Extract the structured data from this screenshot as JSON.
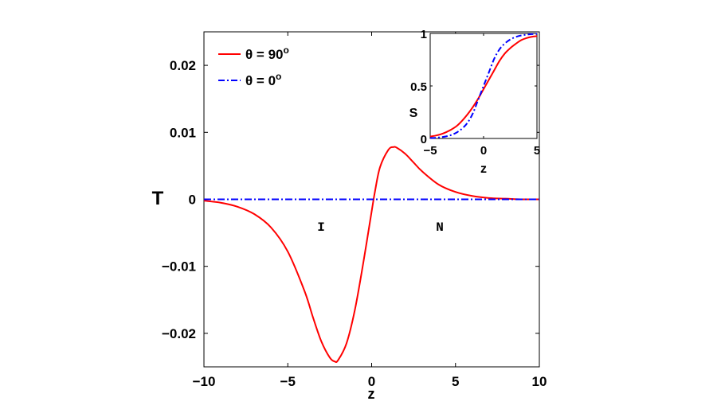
{
  "chart_data": [
    {
      "type": "line",
      "xlabel": "z",
      "ylabel": "T",
      "xlim": [
        -10,
        10
      ],
      "ylim": [
        -0.025,
        0.025
      ],
      "xticks": [
        -10,
        -5,
        0,
        5,
        10
      ],
      "xtick_labels": [
        "−10",
        "−5",
        "0",
        "5",
        "10"
      ],
      "yticks": [
        -0.02,
        -0.01,
        0,
        0.01,
        0.02
      ],
      "ytick_labels": [
        "−0.02",
        "−0.01",
        "0",
        "0.01",
        "0.02"
      ],
      "grid": false,
      "legend_position": "top-left",
      "legend": [
        {
          "prefix": "θ = 90",
          "sup": "o"
        },
        {
          "prefix": "θ = 0",
          "sup": "o"
        }
      ],
      "series": [
        {
          "name": "θ = 90o",
          "color": "#ff0000",
          "style": "solid",
          "x": [
            -10,
            -9,
            -8,
            -7,
            -6,
            -5,
            -4,
            -3.5,
            -3,
            -2.5,
            -2.2,
            -2,
            -1.5,
            -1,
            -0.5,
            0,
            0.2,
            0.5,
            1,
            1.3,
            1.5,
            2,
            2.5,
            3,
            4,
            5,
            6,
            7,
            8,
            9,
            10
          ],
          "y": [
            -0.0002,
            -0.0005,
            -0.0011,
            -0.0022,
            -0.0042,
            -0.0078,
            -0.0137,
            -0.0176,
            -0.0212,
            -0.0236,
            -0.0242,
            -0.024,
            -0.0215,
            -0.0165,
            -0.0095,
            -0.0018,
            0.0012,
            0.0048,
            0.0074,
            0.0078,
            0.0077,
            0.0068,
            0.0055,
            0.0042,
            0.0022,
            0.0011,
            0.0005,
            0.0002,
            0.0001,
            0.0,
            0.0
          ]
        },
        {
          "name": "θ = 0o",
          "color": "#0000ff",
          "style": "dashdot",
          "x": [
            -10,
            10
          ],
          "y": [
            0,
            0
          ]
        }
      ],
      "annotations": [
        {
          "text": "I",
          "x": -3,
          "y": -0.004
        },
        {
          "text": "N",
          "x": 4,
          "y": -0.004
        }
      ]
    },
    {
      "type": "line",
      "inset": true,
      "xlabel": "z",
      "ylabel": "S",
      "xlim": [
        -5,
        5
      ],
      "ylim": [
        0,
        1
      ],
      "xticks": [
        -5,
        0,
        5
      ],
      "xtick_labels": [
        "−5",
        "0",
        "5"
      ],
      "yticks": [
        0,
        0.5,
        1
      ],
      "ytick_labels": [
        "0",
        "0.5",
        "1"
      ],
      "grid": false,
      "series": [
        {
          "name": "θ = 90o",
          "color": "#ff0000",
          "style": "solid",
          "x": [
            -5,
            -4.5,
            -4,
            -3.5,
            -3,
            -2.5,
            -2,
            -1.5,
            -1,
            -0.5,
            0,
            0.5,
            1,
            1.5,
            2,
            2.5,
            3,
            3.5,
            4,
            4.5,
            5
          ],
          "y": [
            0.018,
            0.027,
            0.04,
            0.06,
            0.086,
            0.12,
            0.17,
            0.23,
            0.3,
            0.38,
            0.47,
            0.56,
            0.65,
            0.74,
            0.81,
            0.86,
            0.9,
            0.935,
            0.955,
            0.968,
            0.975
          ]
        },
        {
          "name": "θ = 0o",
          "color": "#0000ff",
          "style": "dashdot",
          "x": [
            -5,
            -4.5,
            -4,
            -3.5,
            -3,
            -2.5,
            -2,
            -1.5,
            -1,
            -0.5,
            0,
            0.5,
            1,
            1.5,
            2,
            2.5,
            3,
            3.5,
            4,
            4.5,
            5
          ],
          "y": [
            0.004,
            0.007,
            0.012,
            0.02,
            0.034,
            0.058,
            0.095,
            0.15,
            0.24,
            0.37,
            0.5,
            0.63,
            0.76,
            0.85,
            0.905,
            0.942,
            0.966,
            0.98,
            0.988,
            0.993,
            0.996
          ]
        }
      ]
    }
  ]
}
